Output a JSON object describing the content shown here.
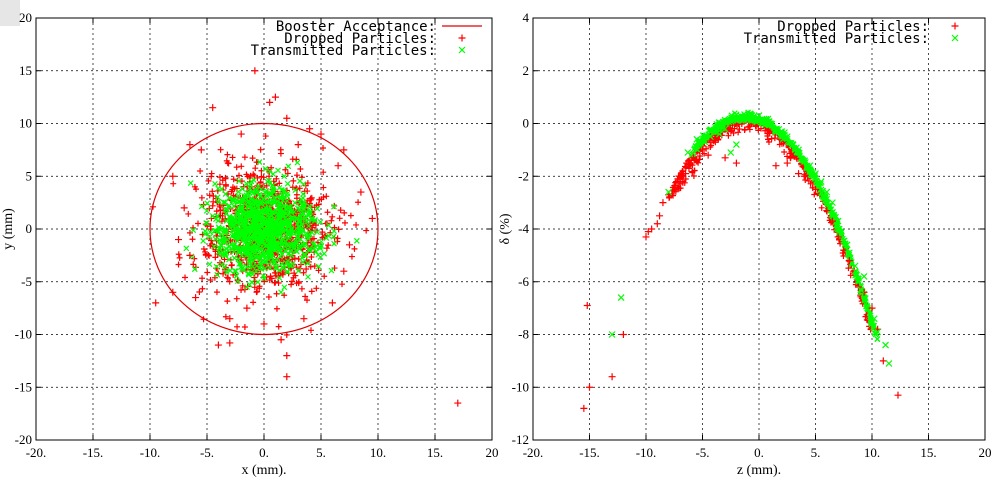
{
  "colors": {
    "dropped": "#ff0000",
    "transmitted": "#00ff00",
    "acceptance": "#e00000"
  },
  "chart_data": [
    {
      "type": "scatter",
      "xlabel": "x (mm).",
      "ylabel": "y (mm)",
      "xlim": [
        -20,
        20
      ],
      "ylim": [
        -20,
        20
      ],
      "xticks": [
        -20,
        -15,
        -10,
        -5,
        0,
        5,
        10,
        15,
        20
      ],
      "xtick_labels": [
        "-20.",
        "-15.",
        "-10.",
        "-5.",
        "0.",
        "5.",
        "10.",
        "15.",
        "20"
      ],
      "yticks": [
        -20,
        -15,
        -10,
        -5,
        0,
        5,
        10,
        15,
        20
      ],
      "ytick_labels": [
        "-20",
        "-15",
        "-10",
        "-5",
        "0",
        "5",
        "10",
        "15",
        "20"
      ],
      "grid": true,
      "legend_position": "top-right",
      "legend": [
        {
          "key": "acceptance",
          "label": "Booster Acceptance:",
          "style": "line"
        },
        {
          "key": "dropped",
          "label": "Dropped Particles:",
          "style": "plus"
        },
        {
          "key": "transmitted",
          "label": "Transmitted Particles:",
          "style": "cross"
        }
      ],
      "circle": {
        "cx": 0,
        "cy": 0,
        "r": 10
      },
      "series": [
        {
          "name": "Dropped Particles",
          "marker": "plus",
          "points": [
            [
              -0.8,
              15.0
            ],
            [
              1.0,
              12.5
            ],
            [
              0.5,
              12.0
            ],
            [
              -4.5,
              11.5
            ],
            [
              5.0,
              9.0
            ],
            [
              -6.5,
              8.0
            ],
            [
              7.0,
              7.5
            ],
            [
              -8.0,
              5.0
            ],
            [
              8.5,
              3.5
            ],
            [
              9.5,
              1.0
            ],
            [
              -9.5,
              -7.0
            ],
            [
              -8.0,
              -6.0
            ],
            [
              -4.0,
              -11.0
            ],
            [
              -3.0,
              -10.8
            ],
            [
              1.5,
              -10.5
            ],
            [
              2.0,
              -12.0
            ],
            [
              2.0,
              -14.0
            ],
            [
              17.0,
              -16.5
            ],
            [
              -7.0,
              2.0
            ],
            [
              -6.5,
              -2.5
            ],
            [
              7.0,
              -4.0
            ],
            [
              6.5,
              6.0
            ],
            [
              -5.5,
              7.5
            ],
            [
              4.0,
              9.5
            ],
            [
              -2.0,
              9.0
            ],
            [
              3.0,
              8.0
            ],
            [
              -6.0,
              -6.5
            ],
            [
              6.0,
              -7.0
            ],
            [
              -3.0,
              -8.5
            ],
            [
              3.5,
              -8.5
            ],
            [
              0.0,
              -9.0
            ],
            [
              7.5,
              -1.5
            ],
            [
              -7.5,
              -1.0
            ],
            [
              2.0,
              10.5
            ],
            [
              -1.5,
              -7.5
            ]
          ]
        },
        {
          "name": "Transmitted Particles",
          "marker": "cross",
          "points": []
        }
      ]
    },
    {
      "type": "scatter",
      "xlabel": "z (mm).",
      "ylabel": "δ (%)",
      "xlim": [
        -20,
        20
      ],
      "ylim": [
        -12,
        4
      ],
      "xticks": [
        -20,
        -15,
        -10,
        -5,
        0,
        5,
        10,
        15,
        20
      ],
      "xtick_labels": [
        "-20.",
        "-15.",
        "-10.",
        "-5.",
        "0.",
        "5.",
        "10.",
        "15.",
        "20"
      ],
      "yticks": [
        -12,
        -10,
        -8,
        -6,
        -4,
        -2,
        0,
        2,
        4
      ],
      "ytick_labels": [
        "-12",
        "-10",
        "-8",
        "-6",
        "-4",
        "-2",
        "0",
        "2",
        "4"
      ],
      "grid": true,
      "legend_position": "top-right",
      "legend": [
        {
          "key": "dropped",
          "label": "Dropped Particles:",
          "style": "plus"
        },
        {
          "key": "transmitted",
          "label": "Transmitted Particles:",
          "style": "cross"
        }
      ],
      "series": [
        {
          "name": "Dropped Particles",
          "marker": "plus",
          "points": [
            [
              -15.5,
              -10.8
            ],
            [
              -15.0,
              -10.0
            ],
            [
              -13.0,
              -9.6
            ],
            [
              -15.2,
              -6.9
            ],
            [
              -12.0,
              -8.0
            ],
            [
              -10.0,
              -4.3
            ],
            [
              -9.5,
              -4.0
            ],
            [
              -9.0,
              -3.8
            ],
            [
              -8.5,
              -3.0
            ],
            [
              -7.5,
              -2.5
            ],
            [
              -6.5,
              -1.9
            ],
            [
              -5.5,
              -1.4
            ],
            [
              -4.5,
              -1.2
            ],
            [
              -6.0,
              -1.5
            ],
            [
              -5.0,
              -1.0
            ],
            [
              -7.0,
              -2.0
            ],
            [
              -8.0,
              -2.7
            ],
            [
              -3.0,
              -1.3
            ],
            [
              -2.0,
              -1.5
            ],
            [
              1.5,
              -1.6
            ],
            [
              3.5,
              -1.9
            ],
            [
              5.0,
              -2.5
            ],
            [
              6.0,
              -3.3
            ],
            [
              7.0,
              -4.3
            ],
            [
              8.0,
              -5.2
            ],
            [
              8.8,
              -6.2
            ],
            [
              9.3,
              -6.4
            ],
            [
              10.0,
              -7.0
            ],
            [
              10.5,
              -7.8
            ],
            [
              11.0,
              -9.0
            ],
            [
              12.3,
              -10.3
            ],
            [
              6.5,
              -3.7
            ],
            [
              7.5,
              -4.8
            ],
            [
              4.0,
              -2.0
            ],
            [
              2.5,
              -1.5
            ],
            [
              -8.8,
              -3.5
            ],
            [
              -9.8,
              -4.1
            ],
            [
              -6.2,
              -1.7
            ],
            [
              -5.8,
              -1.3
            ]
          ]
        },
        {
          "name": "Transmitted Particles",
          "marker": "cross",
          "points": [
            [
              -13.0,
              -8.0
            ],
            [
              -12.2,
              -6.6
            ],
            [
              -8.0,
              -2.6
            ],
            [
              -6.3,
              -1.1
            ],
            [
              -5.5,
              -0.6
            ],
            [
              -4.3,
              -0.5
            ],
            [
              -3.5,
              -0.4
            ],
            [
              -2.5,
              -1.1
            ],
            [
              -2.0,
              -0.8
            ],
            [
              -1.5,
              0.2
            ],
            [
              -0.5,
              0.2
            ],
            [
              1.0,
              0.0
            ],
            [
              2.5,
              -0.5
            ],
            [
              3.5,
              -1.0
            ],
            [
              4.5,
              -1.6
            ],
            [
              5.5,
              -2.2
            ],
            [
              6.5,
              -3.0
            ],
            [
              7.0,
              -3.7
            ],
            [
              7.8,
              -4.6
            ],
            [
              8.5,
              -5.4
            ],
            [
              9.3,
              -5.8
            ],
            [
              10.2,
              -7.4
            ],
            [
              10.5,
              -7.9
            ],
            [
              11.2,
              -8.4
            ],
            [
              11.5,
              -9.1
            ],
            [
              6.0,
              -2.6
            ],
            [
              8.0,
              -4.9
            ],
            [
              5.0,
              -1.9
            ],
            [
              -3.0,
              -0.2
            ],
            [
              0.0,
              0.3
            ],
            [
              -1.0,
              0.25
            ],
            [
              2.0,
              -0.3
            ],
            [
              3.0,
              -0.8
            ],
            [
              -4.8,
              -0.7
            ],
            [
              9.0,
              -6.3
            ]
          ]
        }
      ]
    }
  ]
}
